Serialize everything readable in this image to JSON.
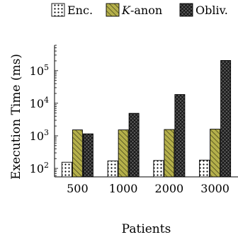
{
  "chart_data": {
    "type": "bar",
    "title": "",
    "xlabel": "Patients",
    "ylabel": "Execution Time (ms)",
    "yscale": "log",
    "ylim": [
      55,
      600000
    ],
    "yticks": [
      100,
      1000,
      10000,
      100000
    ],
    "ytick_labels": [
      {
        "base": "10",
        "exp": "2"
      },
      {
        "base": "10",
        "exp": "3"
      },
      {
        "base": "10",
        "exp": "4"
      },
      {
        "base": "10",
        "exp": "5"
      }
    ],
    "categories": [
      "500",
      "1000",
      "2000",
      "3000"
    ],
    "series": [
      {
        "name": "Enc.",
        "label_plain": "Enc.",
        "pattern": "dots",
        "color": "#ffffff",
        "values": [
          155,
          170,
          175,
          180
        ]
      },
      {
        "name": "K-anon",
        "label_italic": "K",
        "label_rest": "-anon",
        "pattern": "diagonal",
        "color": "#b5b04a",
        "values": [
          1520,
          1520,
          1560,
          1600
        ]
      },
      {
        "name": "Obliv.",
        "label_plain": "Obliv.",
        "pattern": "crosshatch",
        "color": "#4a4a4a",
        "values": [
          1150,
          4900,
          18500,
          205000
        ]
      }
    ],
    "grid": false,
    "legend_position": "top"
  }
}
